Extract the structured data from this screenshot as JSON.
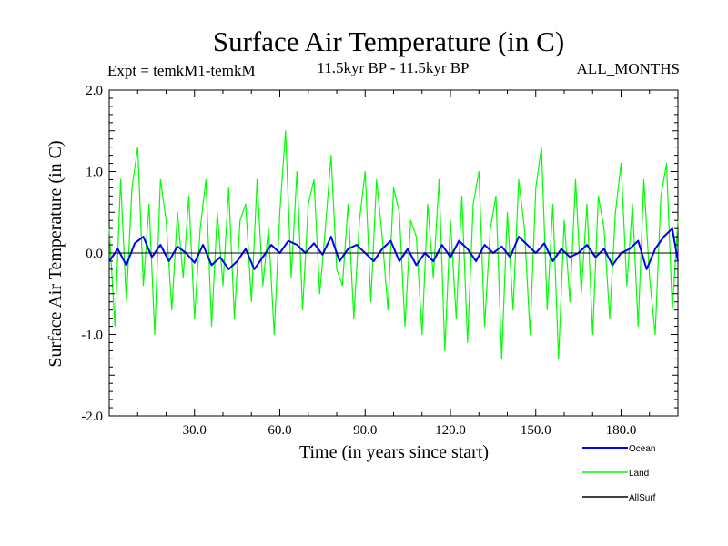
{
  "chart_data": {
    "type": "line",
    "title": "Surface Air Temperature (in C)",
    "subtitle_left": "Expt = temkM1-temkM",
    "subtitle_center": "11.5kyr BP - 11.5kyr BP",
    "subtitle_right": "ALL_MONTHS",
    "xlabel": "Time (in years since start)",
    "ylabel": "Surface Air Temperature (in C)",
    "xlim": [
      0,
      200
    ],
    "ylim": [
      -2.0,
      2.0
    ],
    "x_ticks": [
      30,
      60,
      90,
      120,
      150,
      180
    ],
    "x_tick_labels": [
      "30.0",
      "60.0",
      "90.0",
      "120.0",
      "150.0",
      "180.0"
    ],
    "y_ticks": [
      -2.0,
      -1.0,
      0.0,
      1.0,
      2.0
    ],
    "y_tick_labels": [
      "-2.0",
      "-1.0",
      "0.0",
      "1.0",
      "2.0"
    ],
    "reference_line_y": 0.0,
    "legend_position": "bottom-right",
    "series": [
      {
        "name": "Ocean",
        "color": "#0000ff",
        "x": [
          0,
          3,
          6,
          9,
          12,
          15,
          18,
          21,
          24,
          27,
          30,
          33,
          36,
          39,
          42,
          45,
          48,
          51,
          54,
          57,
          60,
          63,
          66,
          69,
          72,
          75,
          78,
          81,
          84,
          87,
          90,
          93,
          96,
          99,
          102,
          105,
          108,
          111,
          114,
          117,
          120,
          123,
          126,
          129,
          132,
          135,
          138,
          141,
          144,
          147,
          150,
          153,
          156,
          159,
          162,
          165,
          168,
          171,
          174,
          177,
          180,
          183,
          186,
          189,
          192,
          195,
          198,
          200
        ],
        "values": [
          -0.1,
          0.05,
          -0.15,
          0.12,
          0.2,
          -0.05,
          0.1,
          -0.1,
          0.08,
          0.0,
          -0.12,
          0.1,
          -0.15,
          -0.05,
          -0.2,
          -0.1,
          0.05,
          -0.2,
          -0.05,
          0.1,
          0.0,
          0.15,
          0.1,
          0.0,
          0.12,
          -0.02,
          0.2,
          -0.1,
          0.05,
          0.1,
          0.0,
          -0.1,
          0.05,
          0.15,
          -0.1,
          0.05,
          -0.15,
          0.0,
          -0.1,
          0.1,
          -0.05,
          0.15,
          0.05,
          -0.1,
          0.1,
          0.0,
          0.08,
          -0.05,
          0.2,
          0.1,
          0.0,
          0.12,
          -0.1,
          0.05,
          -0.05,
          0.0,
          0.1,
          -0.05,
          0.05,
          -0.15,
          0.0,
          0.05,
          0.15,
          -0.2,
          0.05,
          0.2,
          0.3,
          -0.1
        ]
      },
      {
        "name": "Land",
        "color": "#00ff00",
        "x": [
          0,
          2,
          4,
          6,
          8,
          10,
          12,
          14,
          16,
          18,
          20,
          22,
          24,
          26,
          28,
          30,
          32,
          34,
          36,
          38,
          40,
          42,
          44,
          46,
          48,
          50,
          52,
          54,
          56,
          58,
          60,
          62,
          64,
          66,
          68,
          70,
          72,
          74,
          76,
          78,
          80,
          82,
          84,
          86,
          88,
          90,
          92,
          94,
          96,
          98,
          100,
          102,
          104,
          106,
          108,
          110,
          112,
          114,
          116,
          118,
          120,
          122,
          124,
          126,
          128,
          130,
          132,
          134,
          136,
          138,
          140,
          142,
          144,
          146,
          148,
          150,
          152,
          154,
          156,
          158,
          160,
          162,
          164,
          166,
          168,
          170,
          172,
          174,
          176,
          178,
          180,
          182,
          184,
          186,
          188,
          190,
          192,
          194,
          196,
          198,
          200
        ],
        "values": [
          0.3,
          -0.9,
          0.9,
          -0.6,
          0.8,
          1.3,
          -0.4,
          0.6,
          -1.0,
          0.9,
          0.4,
          -0.7,
          0.5,
          -0.3,
          0.7,
          -0.8,
          0.3,
          0.9,
          -0.9,
          0.5,
          -0.4,
          0.8,
          -0.8,
          0.4,
          0.6,
          -0.6,
          0.9,
          -0.4,
          0.3,
          -1.0,
          0.5,
          1.5,
          -0.3,
          1.0,
          -0.7,
          0.6,
          0.9,
          -0.5,
          0.3,
          1.2,
          -0.2,
          -0.4,
          0.6,
          -0.8,
          0.4,
          1.0,
          -0.6,
          0.9,
          0.2,
          -0.7,
          0.8,
          0.5,
          -0.9,
          0.4,
          0.2,
          -1.0,
          0.6,
          -0.3,
          0.9,
          -1.2,
          0.4,
          -0.8,
          0.7,
          -1.1,
          0.6,
          1.0,
          -0.9,
          0.3,
          0.7,
          -1.3,
          0.5,
          -0.7,
          0.9,
          0.3,
          -1.0,
          0.8,
          1.3,
          -0.7,
          0.6,
          -1.3,
          0.4,
          -0.6,
          0.9,
          -0.5,
          0.6,
          -1.0,
          0.7,
          0.3,
          -0.8,
          0.5,
          1.1,
          -0.4,
          0.6,
          -0.9,
          0.9,
          -0.3,
          -1.0,
          0.7,
          1.1,
          -0.7,
          0.4
        ]
      },
      {
        "name": "AllSurf",
        "color": "#000000",
        "x": [],
        "values": []
      }
    ]
  }
}
